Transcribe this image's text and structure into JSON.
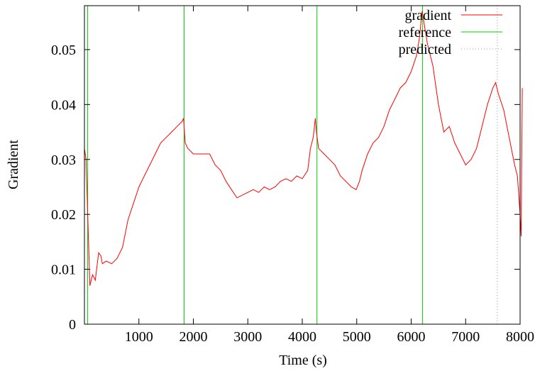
{
  "chart_data": {
    "type": "line",
    "xlabel": "Time (s)",
    "ylabel": "Gradient",
    "xlim": [
      0,
      8000
    ],
    "ylim": [
      0,
      0.058
    ],
    "x_ticks": [
      1000,
      2000,
      3000,
      4000,
      5000,
      6000,
      7000,
      8000
    ],
    "x_tick_labels": [
      "1000",
      "2000",
      "3000",
      "4000",
      "5000",
      "6000",
      "7000",
      "8000"
    ],
    "y_ticks": [
      0,
      0.01,
      0.02,
      0.03,
      0.04,
      0.05
    ],
    "y_tick_labels": [
      "0",
      "0.01",
      "0.02",
      "0.03",
      "0.04",
      "0.05"
    ],
    "grid": false,
    "legend_position": "top-right",
    "legend": [
      {
        "label": "gradient",
        "color": "#ff0000",
        "style": "solid"
      },
      {
        "label": "reference",
        "color": "#00cc00",
        "style": "solid"
      },
      {
        "label": "predicted",
        "color": "#a0a0a0",
        "style": "dotted"
      }
    ],
    "series": [
      {
        "name": "gradient",
        "color": "#ff0000",
        "x": [
          0,
          30,
          60,
          100,
          150,
          200,
          260,
          300,
          330,
          400,
          500,
          600,
          700,
          800,
          900,
          1000,
          1100,
          1200,
          1300,
          1400,
          1500,
          1600,
          1700,
          1800,
          1820,
          1850,
          1900,
          2000,
          2100,
          2200,
          2300,
          2400,
          2500,
          2600,
          2700,
          2800,
          2900,
          3000,
          3100,
          3200,
          3300,
          3400,
          3500,
          3600,
          3700,
          3800,
          3900,
          4000,
          4100,
          4150,
          4200,
          4240,
          4260,
          4300,
          4400,
          4500,
          4600,
          4700,
          4800,
          4900,
          4990,
          5050,
          5100,
          5200,
          5300,
          5400,
          5500,
          5600,
          5700,
          5800,
          5900,
          6000,
          6100,
          6150,
          6200,
          6250,
          6300,
          6400,
          6500,
          6600,
          6700,
          6800,
          6900,
          7000,
          7100,
          7200,
          7300,
          7400,
          7500,
          7550,
          7600,
          7700,
          7800,
          7900,
          7950,
          8000,
          8020,
          8040
        ],
        "y": [
          0.032,
          0.03,
          0.02,
          0.007,
          0.009,
          0.008,
          0.013,
          0.0125,
          0.011,
          0.0115,
          0.011,
          0.012,
          0.014,
          0.019,
          0.022,
          0.025,
          0.027,
          0.029,
          0.031,
          0.033,
          0.034,
          0.035,
          0.036,
          0.037,
          0.0375,
          0.033,
          0.032,
          0.031,
          0.031,
          0.031,
          0.031,
          0.029,
          0.028,
          0.026,
          0.0245,
          0.023,
          0.0235,
          0.024,
          0.0245,
          0.024,
          0.025,
          0.0245,
          0.025,
          0.026,
          0.0265,
          0.026,
          0.027,
          0.0265,
          0.028,
          0.032,
          0.034,
          0.0375,
          0.035,
          0.032,
          0.031,
          0.03,
          0.029,
          0.027,
          0.026,
          0.025,
          0.0245,
          0.026,
          0.028,
          0.031,
          0.033,
          0.034,
          0.036,
          0.039,
          0.041,
          0.043,
          0.044,
          0.046,
          0.049,
          0.052,
          0.057,
          0.054,
          0.051,
          0.047,
          0.04,
          0.035,
          0.036,
          0.033,
          0.031,
          0.029,
          0.03,
          0.032,
          0.036,
          0.04,
          0.043,
          0.044,
          0.042,
          0.039,
          0.034,
          0.029,
          0.027,
          0.02,
          0.016,
          0.043
        ]
      }
    ],
    "reference_lines": [
      60,
      1830,
      4270,
      6210
    ],
    "predicted_lines": [
      7580
    ]
  }
}
